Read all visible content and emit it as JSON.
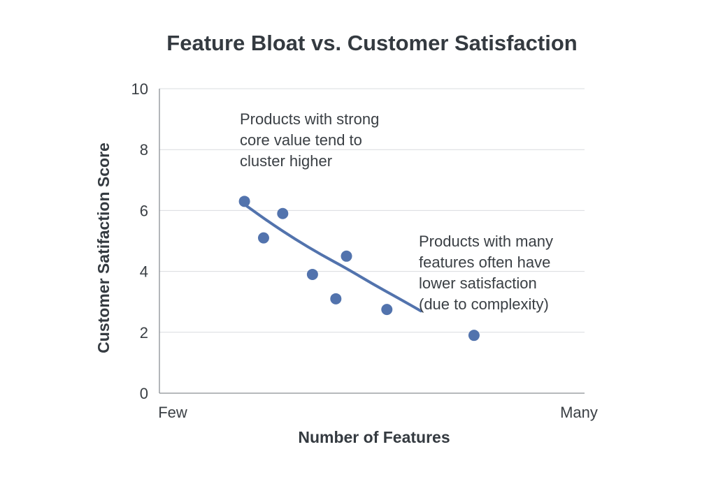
{
  "chart_data": {
    "type": "scatter",
    "title": "Feature Bloat vs. Customer Satisfaction",
    "xlabel": "Number of Features",
    "ylabel": "Customer Satifaction Score",
    "xlim": [
      0,
      10
    ],
    "ylim": [
      0,
      10
    ],
    "y_ticks": [
      0,
      2,
      4,
      6,
      8,
      10
    ],
    "x_tick_labels": [
      "Few",
      "Many"
    ],
    "grid": true,
    "legend": "none",
    "points": [
      {
        "x": 2.0,
        "y": 6.3
      },
      {
        "x": 2.45,
        "y": 5.1
      },
      {
        "x": 2.9,
        "y": 5.9
      },
      {
        "x": 3.6,
        "y": 3.9
      },
      {
        "x": 4.15,
        "y": 3.1
      },
      {
        "x": 4.4,
        "y": 4.5
      },
      {
        "x": 5.35,
        "y": 2.75
      },
      {
        "x": 7.4,
        "y": 1.9
      }
    ],
    "trend_line": [
      {
        "x": 2.05,
        "y": 6.15
      },
      {
        "x": 2.6,
        "y": 5.6
      },
      {
        "x": 3.2,
        "y": 5.05
      },
      {
        "x": 3.8,
        "y": 4.55
      },
      {
        "x": 4.4,
        "y": 4.1
      },
      {
        "x": 5.0,
        "y": 3.6
      },
      {
        "x": 5.65,
        "y": 3.1
      },
      {
        "x": 6.15,
        "y": 2.7
      }
    ],
    "annotations": [
      {
        "lines": [
          "Products with strong",
          "core value tend to",
          "cluster higher"
        ]
      },
      {
        "lines": [
          "Products with many",
          "features often have",
          "lower satisfaction",
          "(due to complexity)"
        ]
      }
    ],
    "colors": {
      "series": "#5273ad",
      "grid": "#d9dcdf",
      "axis": "#8a8f94",
      "text": "#3a3f44"
    }
  }
}
